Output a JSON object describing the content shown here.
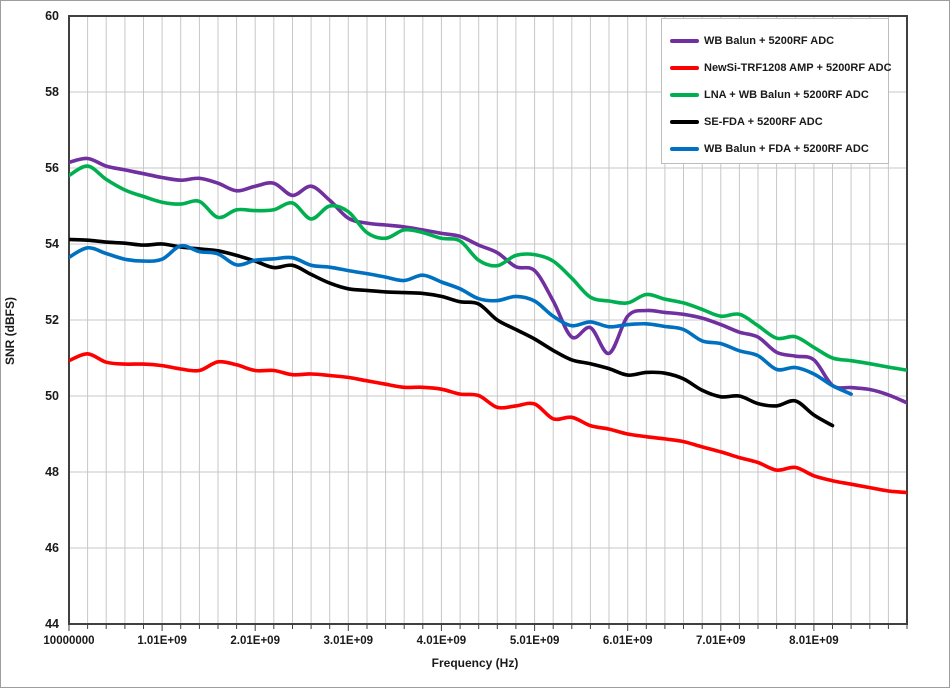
{
  "window": {
    "background": "#ffffff",
    "outer_border_color": "#9d9d9d"
  },
  "chart_data": {
    "type": "line",
    "title": "",
    "xlabel": "Frequency (Hz)",
    "ylabel": "SNR (dBFS)",
    "grid": "on",
    "grid_color": "#c7c7c7",
    "axis_color": "#404040",
    "text_color": "#1a1a1a",
    "legend_position": "top-right",
    "x_axis": {
      "scale": "category",
      "start_ghz": 0.01,
      "step_ghz": 0.2,
      "num_points": 46,
      "tick_indices": [
        0,
        5,
        10,
        15,
        20,
        25,
        30,
        35,
        40
      ],
      "tick_labels": [
        "10000000",
        "1.01E+09",
        "2.01E+09",
        "3.01E+09",
        "4.01E+09",
        "5.01E+09",
        "6.01E+09",
        "7.01E+09",
        "8.01E+09"
      ]
    },
    "y_axis": {
      "min": 44,
      "max": 60,
      "step": 2,
      "tick_labels": [
        "60",
        "58",
        "56",
        "54",
        "52",
        "50",
        "48",
        "46",
        "44"
      ]
    },
    "series": [
      {
        "name": "WB Balun + 5200RF ADC",
        "color": "#7030A0",
        "values": [
          56.15,
          56.25,
          56.05,
          55.95,
          55.85,
          55.75,
          55.68,
          55.73,
          55.6,
          55.4,
          55.52,
          55.6,
          55.28,
          55.52,
          55.15,
          54.68,
          54.55,
          54.5,
          54.45,
          54.37,
          54.28,
          54.2,
          53.97,
          53.77,
          53.4,
          53.3,
          52.5,
          51.55,
          51.8,
          51.12,
          52.1,
          52.25,
          52.2,
          52.15,
          52.05,
          51.88,
          51.68,
          51.55,
          51.15,
          51.05,
          50.95,
          50.28,
          50.22,
          50.17,
          50.03,
          49.82
        ]
      },
      {
        "name": "NewSi-TRF1208 AMP + 5200RF ADC",
        "color": "#FF0000",
        "values": [
          50.93,
          51.11,
          50.89,
          50.84,
          50.84,
          50.8,
          50.71,
          50.67,
          50.9,
          50.82,
          50.67,
          50.67,
          50.56,
          50.58,
          50.54,
          50.49,
          50.4,
          50.31,
          50.23,
          50.23,
          50.18,
          50.05,
          50.01,
          49.7,
          49.74,
          49.79,
          49.4,
          49.44,
          49.22,
          49.13,
          49.0,
          48.93,
          48.87,
          48.8,
          48.66,
          48.53,
          48.38,
          48.25,
          48.05,
          48.12,
          47.9,
          47.77,
          47.68,
          47.59,
          47.5,
          47.46
        ]
      },
      {
        "name": "LNA + WB Balun + 5200RF ADC",
        "color": "#00B050",
        "values": [
          55.8,
          56.05,
          55.7,
          55.42,
          55.25,
          55.1,
          55.05,
          55.12,
          54.7,
          54.9,
          54.88,
          54.9,
          55.08,
          54.66,
          55.0,
          54.85,
          54.3,
          54.15,
          54.37,
          54.3,
          54.15,
          54.08,
          53.57,
          53.43,
          53.7,
          53.72,
          53.55,
          53.1,
          52.6,
          52.5,
          52.45,
          52.67,
          52.55,
          52.45,
          52.28,
          52.1,
          52.15,
          51.85,
          51.52,
          51.56,
          51.28,
          51.0,
          50.93,
          50.85,
          50.76,
          50.68
        ]
      },
      {
        "name": "SE-FDA + 5200RF ADC",
        "color": "#000000",
        "values": [
          54.12,
          54.1,
          54.05,
          54.02,
          53.97,
          54.0,
          53.92,
          53.87,
          53.82,
          53.7,
          53.55,
          53.38,
          53.44,
          53.2,
          52.97,
          52.82,
          52.78,
          52.74,
          52.72,
          52.7,
          52.62,
          52.48,
          52.42,
          52.0,
          51.75,
          51.5,
          51.2,
          50.95,
          50.85,
          50.72,
          50.55,
          50.62,
          50.6,
          50.45,
          50.15,
          49.98,
          50.0,
          49.8,
          49.74,
          49.87,
          49.5,
          49.22
        ]
      },
      {
        "name": "WB Balun + FDA + 5200RF ADC",
        "color": "#0070C0",
        "values": [
          53.65,
          53.9,
          53.75,
          53.6,
          53.55,
          53.6,
          53.95,
          53.8,
          53.74,
          53.45,
          53.57,
          53.61,
          53.64,
          53.44,
          53.39,
          53.3,
          53.22,
          53.13,
          53.04,
          53.18,
          53.0,
          52.82,
          52.56,
          52.51,
          52.62,
          52.5,
          52.1,
          51.85,
          51.95,
          51.82,
          51.88,
          51.9,
          51.83,
          51.75,
          51.45,
          51.38,
          51.19,
          51.06,
          50.7,
          50.75,
          50.58,
          50.27,
          50.05
        ]
      }
    ]
  }
}
